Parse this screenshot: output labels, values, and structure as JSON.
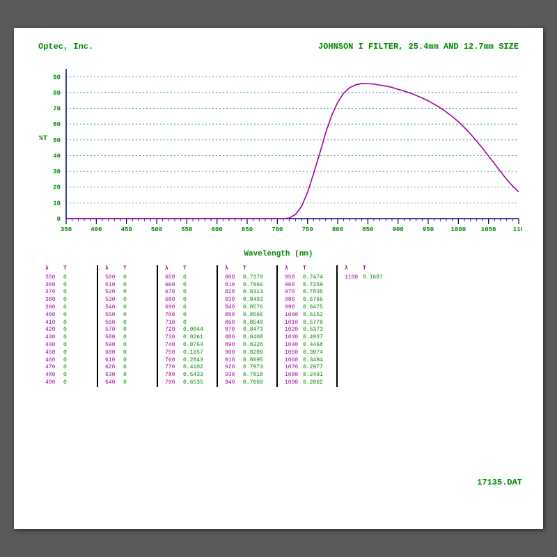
{
  "header": {
    "company": "Optec, Inc.",
    "title": "JOHNSON I FILTER, 25.4mm AND 12.7mm SIZE"
  },
  "footer": {
    "filename": "17135.DAT"
  },
  "chart": {
    "type": "line",
    "xlabel": "Wavelength (nm)",
    "ylabel": "%T",
    "xlim": [
      350,
      1100
    ],
    "ylim": [
      0,
      95
    ],
    "xtick_step": 50,
    "xtick_start": 350,
    "xtick_end": 1100,
    "yticks": [
      0,
      10,
      20,
      30,
      40,
      50,
      60,
      70,
      80,
      90
    ],
    "minor_xtick_step": 10,
    "colors": {
      "axis": "#000080",
      "grid": "#008888",
      "ticklabel": "#008800",
      "line": "#a000a0",
      "background": "#ffffff"
    },
    "line_width": 1.6,
    "grid_dash": "2,3",
    "data": [
      [
        350,
        0
      ],
      [
        360,
        0
      ],
      [
        370,
        0
      ],
      [
        380,
        0
      ],
      [
        390,
        0
      ],
      [
        400,
        0
      ],
      [
        410,
        0
      ],
      [
        420,
        0
      ],
      [
        430,
        0
      ],
      [
        440,
        0
      ],
      [
        450,
        0
      ],
      [
        460,
        0
      ],
      [
        470,
        0
      ],
      [
        480,
        0
      ],
      [
        490,
        0
      ],
      [
        500,
        0
      ],
      [
        510,
        0
      ],
      [
        520,
        0
      ],
      [
        530,
        0
      ],
      [
        540,
        0
      ],
      [
        550,
        0
      ],
      [
        560,
        0
      ],
      [
        570,
        0
      ],
      [
        580,
        0
      ],
      [
        590,
        0
      ],
      [
        600,
        0
      ],
      [
        610,
        0
      ],
      [
        620,
        0
      ],
      [
        630,
        0
      ],
      [
        640,
        0
      ],
      [
        650,
        0
      ],
      [
        660,
        0
      ],
      [
        670,
        0
      ],
      [
        680,
        0
      ],
      [
        690,
        0
      ],
      [
        700,
        0
      ],
      [
        710,
        0
      ],
      [
        720,
        0.44
      ],
      [
        730,
        2.61
      ],
      [
        740,
        7.64
      ],
      [
        750,
        16.57
      ],
      [
        760,
        28.43
      ],
      [
        770,
        41.02
      ],
      [
        780,
        54.33
      ],
      [
        790,
        65.35
      ],
      [
        800,
        73.79
      ],
      [
        810,
        79.66
      ],
      [
        820,
        83.13
      ],
      [
        830,
        84.93
      ],
      [
        840,
        85.76
      ],
      [
        850,
        85.66
      ],
      [
        860,
        85.4
      ],
      [
        870,
        84.73
      ],
      [
        880,
        84.08
      ],
      [
        890,
        83.28
      ],
      [
        900,
        82.09
      ],
      [
        910,
        80.95
      ],
      [
        920,
        79.73
      ],
      [
        930,
        78.18
      ],
      [
        940,
        76.6
      ],
      [
        950,
        74.74
      ],
      [
        960,
        72.59
      ],
      [
        970,
        70.35
      ],
      [
        980,
        67.66
      ],
      [
        990,
        64.75
      ],
      [
        1000,
        61.52
      ],
      [
        1010,
        57.78
      ],
      [
        1020,
        53.73
      ],
      [
        1030,
        49.37
      ],
      [
        1040,
        44.68
      ],
      [
        1050,
        39.74
      ],
      [
        1060,
        34.84
      ],
      [
        1070,
        29.77
      ],
      [
        1080,
        24.91
      ],
      [
        1090,
        20.62
      ],
      [
        1100,
        16.87
      ]
    ]
  },
  "tables": {
    "col_headers": [
      "λ",
      "T"
    ],
    "groups": [
      [
        [
          "350",
          "0"
        ],
        [
          "360",
          "0"
        ],
        [
          "370",
          "0"
        ],
        [
          "380",
          "0"
        ],
        [
          "390",
          "0"
        ],
        [
          "400",
          "0"
        ],
        [
          "410",
          "0"
        ],
        [
          "420",
          "0"
        ],
        [
          "430",
          "0"
        ],
        [
          "440",
          "0"
        ],
        [
          "450",
          "0"
        ],
        [
          "460",
          "0"
        ],
        [
          "470",
          "0"
        ],
        [
          "480",
          "0"
        ],
        [
          "490",
          "0"
        ]
      ],
      [
        [
          "500",
          "0"
        ],
        [
          "510",
          "0"
        ],
        [
          "520",
          "0"
        ],
        [
          "530",
          "0"
        ],
        [
          "540",
          "0"
        ],
        [
          "550",
          "0"
        ],
        [
          "560",
          "0"
        ],
        [
          "570",
          "0"
        ],
        [
          "580",
          "0"
        ],
        [
          "590",
          "0"
        ],
        [
          "600",
          "0"
        ],
        [
          "610",
          "0"
        ],
        [
          "620",
          "0"
        ],
        [
          "630",
          "0"
        ],
        [
          "640",
          "0"
        ]
      ],
      [
        [
          "650",
          "0"
        ],
        [
          "660",
          "0"
        ],
        [
          "670",
          "0"
        ],
        [
          "680",
          "0"
        ],
        [
          "690",
          "0"
        ],
        [
          "700",
          "0"
        ],
        [
          "710",
          "0"
        ],
        [
          "720",
          "0.0044"
        ],
        [
          "730",
          "0.0261"
        ],
        [
          "740",
          "0.0764"
        ],
        [
          "750",
          "0.1657"
        ],
        [
          "760",
          "0.2843"
        ],
        [
          "770",
          "0.4102"
        ],
        [
          "780",
          "0.5433"
        ],
        [
          "790",
          "0.6535"
        ]
      ],
      [
        [
          "800",
          "0.7379"
        ],
        [
          "810",
          "0.7966"
        ],
        [
          "820",
          "0.8313"
        ],
        [
          "830",
          "0.8493"
        ],
        [
          "840",
          "0.8576"
        ],
        [
          "850",
          "0.8566"
        ],
        [
          "860",
          "0.8540"
        ],
        [
          "870",
          "0.8473"
        ],
        [
          "880",
          "0.8408"
        ],
        [
          "890",
          "0.8328"
        ],
        [
          "900",
          "0.8209"
        ],
        [
          "910",
          "0.8095"
        ],
        [
          "920",
          "0.7973"
        ],
        [
          "930",
          "0.7818"
        ],
        [
          "940",
          "0.7660"
        ]
      ],
      [
        [
          "950",
          "0.7474"
        ],
        [
          "960",
          "0.7259"
        ],
        [
          "970",
          "0.7035"
        ],
        [
          "980",
          "0.6766"
        ],
        [
          "990",
          "0.6475"
        ],
        [
          "1000",
          "0.6152"
        ],
        [
          "1010",
          "0.5778"
        ],
        [
          "1020",
          "0.5373"
        ],
        [
          "1030",
          "0.4937"
        ],
        [
          "1040",
          "0.4468"
        ],
        [
          "1050",
          "0.3974"
        ],
        [
          "1060",
          "0.3484"
        ],
        [
          "1070",
          "0.2977"
        ],
        [
          "1080",
          "0.2491"
        ],
        [
          "1090",
          "0.2062"
        ]
      ],
      [
        [
          "1100",
          "0.1687"
        ]
      ]
    ]
  }
}
